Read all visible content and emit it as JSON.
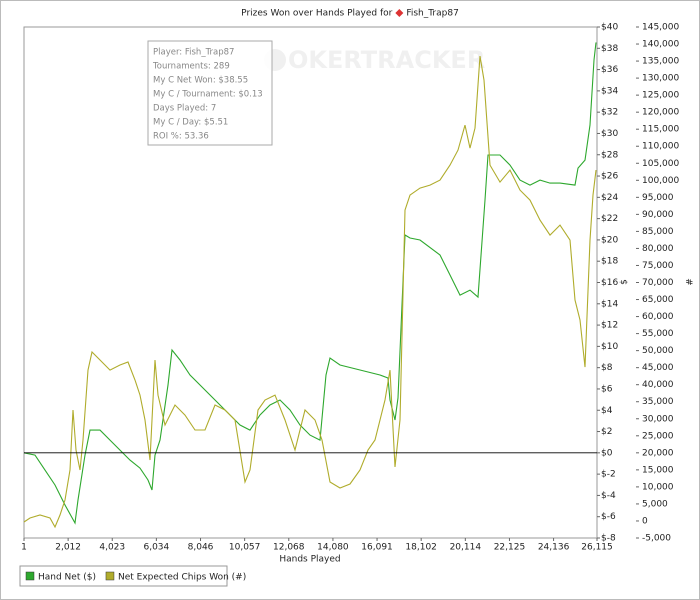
{
  "chart_data": {
    "type": "line",
    "title": "Prizes Won over Hands Played for",
    "title_player": "Fish_Trap87",
    "xlabel": "Hands Played",
    "ylabel": "$",
    "y2label": "#",
    "watermark": "OKERTRACKER",
    "annotations": [
      "Player: Fish_Trap87",
      "Tournaments: 289",
      "My C Net Won: $38.55",
      "My C / Tournament: $0.13",
      "Days Played: 7",
      "My C / Day: $5.51",
      "ROI %: 53.36"
    ],
    "legend": "bottom-left",
    "grid": false,
    "xlim": [
      1,
      26115
    ],
    "xticks": [
      1,
      {
        "value": 2012,
        "label": "2,012"
      },
      {
        "value": 4023,
        "label": "4,023"
      },
      {
        "value": 6034,
        "label": "6,034"
      },
      {
        "value": 8046,
        "label": "8,046"
      },
      {
        "value": 10057,
        "label": "10,057"
      },
      {
        "value": 12068,
        "label": "12,068"
      },
      {
        "value": 14080,
        "label": "14,080"
      },
      {
        "value": 16091,
        "label": "16,091"
      },
      {
        "value": 18102,
        "label": "18,102"
      },
      {
        "value": 20114,
        "label": "20,114"
      },
      {
        "value": 22125,
        "label": "22,125"
      },
      {
        "value": 24136,
        "label": "24,136"
      },
      {
        "value": 26115,
        "label": "26,115"
      }
    ],
    "ylim": [
      -8,
      40
    ],
    "yticks": [
      {
        "value": 40,
        "label": "$40"
      },
      {
        "value": 38,
        "label": "$38"
      },
      {
        "value": 36,
        "label": "$36"
      },
      {
        "value": 34,
        "label": "$34"
      },
      {
        "value": 32,
        "label": "$32"
      },
      {
        "value": 30,
        "label": "$30"
      },
      {
        "value": 28,
        "label": "$28"
      },
      {
        "value": 26,
        "label": "$26"
      },
      {
        "value": 24,
        "label": "$24"
      },
      {
        "value": 22,
        "label": "$22"
      },
      {
        "value": 20,
        "label": "$20"
      },
      {
        "value": 18,
        "label": "$18"
      },
      {
        "value": 16,
        "label": "$16"
      },
      {
        "value": 14,
        "label": "$14"
      },
      {
        "value": 12,
        "label": "$12"
      },
      {
        "value": 10,
        "label": "$10"
      },
      {
        "value": 8,
        "label": "$8"
      },
      {
        "value": 6,
        "label": "$6"
      },
      {
        "value": 4,
        "label": "$4"
      },
      {
        "value": 2,
        "label": "$2"
      },
      {
        "value": 0,
        "label": "$0"
      },
      {
        "value": -2,
        "label": "$-2"
      },
      {
        "value": -4,
        "label": "$-4"
      },
      {
        "value": -6,
        "label": "$-6"
      },
      {
        "value": -8,
        "label": "$-8"
      }
    ],
    "y2lim": [
      -5000,
      145000
    ],
    "y2ticks": [
      {
        "value": 145000,
        "label": "145,000"
      },
      {
        "value": 140000,
        "label": "140,000"
      },
      {
        "value": 135000,
        "label": "135,000"
      },
      {
        "value": 130000,
        "label": "130,000"
      },
      {
        "value": 125000,
        "label": "125,000"
      },
      {
        "value": 120000,
        "label": "120,000"
      },
      {
        "value": 115000,
        "label": "115,000"
      },
      {
        "value": 110000,
        "label": "110,000"
      },
      {
        "value": 105000,
        "label": "105,000"
      },
      {
        "value": 100000,
        "label": "100,000"
      },
      {
        "value": 95000,
        "label": "95,000"
      },
      {
        "value": 90000,
        "label": "90,000"
      },
      {
        "value": 85000,
        "label": "85,000"
      },
      {
        "value": 80000,
        "label": "80,000"
      },
      {
        "value": 75000,
        "label": "75,000"
      },
      {
        "value": 70000,
        "label": "70,000"
      },
      {
        "value": 65000,
        "label": "65,000"
      },
      {
        "value": 60000,
        "label": "60,000"
      },
      {
        "value": 55000,
        "label": "55,000"
      },
      {
        "value": 50000,
        "label": "50,000"
      },
      {
        "value": 45000,
        "label": "45,000"
      },
      {
        "value": 40000,
        "label": "40,000"
      },
      {
        "value": 35000,
        "label": "35,000"
      },
      {
        "value": 30000,
        "label": "30,000"
      },
      {
        "value": 25000,
        "label": "25,000"
      },
      {
        "value": 20000,
        "label": "20,000"
      },
      {
        "value": 15000,
        "label": "15,000"
      },
      {
        "value": 10000,
        "label": "10,000"
      },
      {
        "value": 5000,
        "label": "5,000"
      },
      0,
      {
        "value": -5000,
        "label": "-5,000"
      }
    ],
    "series": [
      {
        "name": "Hand Net ($)",
        "color": "#2ea82e",
        "x": [
          1,
          502,
          958,
          1414,
          1869,
          2325,
          2462,
          2781,
          3009,
          3464,
          3920,
          4376,
          4831,
          5287,
          5652,
          5834,
          5971,
          6199,
          6563,
          6745,
          7110,
          7566,
          8021,
          8477,
          8933,
          9388,
          9844,
          10300,
          10756,
          11211,
          11667,
          12123,
          12578,
          13034,
          13490,
          13763,
          13946,
          14401,
          15313,
          16225,
          16589,
          16680,
          16908,
          17045,
          17364,
          17592,
          18048,
          18960,
          19416,
          19871,
          20327,
          20692,
          21011,
          21148,
          21694,
          22150,
          22606,
          23062,
          23517,
          23973,
          24429,
          25113,
          25249,
          25568,
          25796,
          25979,
          26070
        ],
        "values": [
          0,
          -0.21,
          -1.62,
          -3.02,
          -4.9,
          -6.59,
          -4.43,
          -0.21,
          2.14,
          2.14,
          1.2,
          0.26,
          -0.68,
          -1.43,
          -2.55,
          -3.49,
          -0.21,
          1.2,
          6.37,
          9.66,
          8.72,
          7.31,
          6.37,
          5.43,
          4.49,
          3.55,
          2.61,
          2.14,
          3.55,
          4.49,
          4.96,
          4.02,
          2.61,
          1.67,
          1.2,
          7.31,
          8.91,
          8.25,
          7.78,
          7.31,
          7.03,
          4.96,
          3.08,
          5.15,
          20.46,
          20.18,
          19.99,
          18.58,
          16.7,
          14.82,
          15.29,
          14.63,
          23.75,
          27.98,
          27.98,
          27.03,
          25.62,
          25.15,
          25.62,
          25.34,
          25.34,
          25.15,
          26.75,
          27.5,
          30.79,
          36.9,
          38.55
        ]
      },
      {
        "name": "Net Expected Chips Won (#)",
        "color": "#b0ac2c",
        "axis": "y2",
        "x": [
          1,
          274,
          730,
          1186,
          1414,
          1642,
          1869,
          2097,
          2234,
          2371,
          2553,
          2690,
          2918,
          3100,
          3464,
          3920,
          4376,
          4740,
          5059,
          5287,
          5515,
          5743,
          5971,
          6107,
          6427,
          6882,
          7338,
          7794,
          8249,
          8705,
          9160,
          9616,
          10072,
          10300,
          10665,
          10984,
          11439,
          11895,
          12351,
          12806,
          13262,
          13581,
          13946,
          14401,
          14857,
          15313,
          15678,
          15997,
          16452,
          16680,
          16908,
          17136,
          17364,
          17592,
          18048,
          18504,
          18960,
          19416,
          19780,
          20099,
          20327,
          20555,
          20783,
          20965,
          21239,
          21694,
          22150,
          22606,
          23062,
          23517,
          23973,
          24429,
          24885,
          25113,
          25340,
          25568,
          25796,
          25933,
          26070
        ],
        "values": [
          -310,
          860,
          1740,
          860,
          -1780,
          1740,
          6150,
          14950,
          32560,
          20820,
          14950,
          23760,
          44300,
          49590,
          47240,
          44300,
          45770,
          46650,
          41370,
          36960,
          29630,
          17890,
          47240,
          36960,
          28160,
          34030,
          31090,
          26690,
          26690,
          34030,
          32560,
          29630,
          11430,
          14950,
          32560,
          35500,
          36960,
          29630,
          20820,
          32560,
          29630,
          23760,
          11430,
          9670,
          10840,
          14950,
          20820,
          23760,
          35500,
          44300,
          15830,
          29630,
          91260,
          95660,
          97720,
          98600,
          100070,
          104470,
          108870,
          116210,
          109460,
          115330,
          136460,
          129420,
          104470,
          99480,
          103000,
          97130,
          94200,
          88330,
          83920,
          86860,
          82460,
          64850,
          58980,
          45180,
          82460,
          95660,
          103000
        ]
      }
    ]
  }
}
